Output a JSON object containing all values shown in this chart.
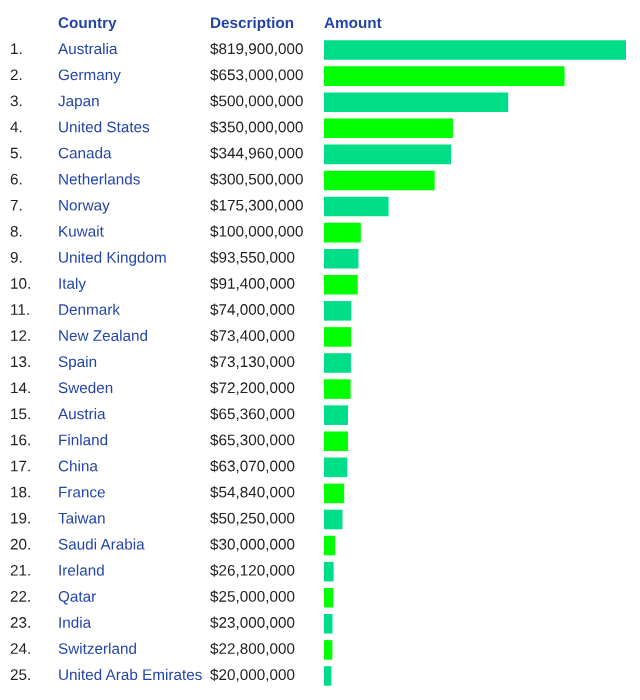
{
  "chart_data": {
    "type": "bar",
    "orientation": "horizontal",
    "categories": [
      "Australia",
      "Germany",
      "Japan",
      "United States",
      "Canada",
      "Netherlands",
      "Norway",
      "Kuwait",
      "United Kingdom",
      "Italy",
      "Denmark",
      "New Zealand",
      "Spain",
      "Sweden",
      "Austria",
      "Finland",
      "China",
      "France",
      "Taiwan",
      "Saudi Arabia",
      "Ireland",
      "Qatar",
      "India",
      "Switzerland",
      "United Arab Emirates"
    ],
    "values": [
      819900000,
      653000000,
      500000000,
      350000000,
      344960000,
      300500000,
      175300000,
      100000000,
      93550000,
      91400000,
      74000000,
      73400000,
      73130000,
      72200000,
      65360000,
      65300000,
      63070000,
      54840000,
      50250000,
      30000000,
      26120000,
      25000000,
      23000000,
      22800000,
      20000000
    ],
    "value_labels": [
      "$819,900,000",
      "$653,000,000",
      "$500,000,000",
      "$350,000,000",
      "$344,960,000",
      "$300,500,000",
      "$175,300,000",
      "$100,000,000",
      "$93,550,000",
      "$91,400,000",
      "$74,000,000",
      "$73,400,000",
      "$73,130,000",
      "$72,200,000",
      "$65,360,000",
      "$65,300,000",
      "$63,070,000",
      "$54,840,000",
      "$50,250,000",
      "$30,000,000",
      "$26,120,000",
      "$25,000,000",
      "$23,000,000",
      "$22,800,000",
      "$20,000,000"
    ],
    "colors": [
      "#00dd88",
      "#00ff00",
      "#00dd88",
      "#00ff00",
      "#00dd88",
      "#00ff00",
      "#00dd88",
      "#00ff00",
      "#00dd88",
      "#00ff00",
      "#00dd88",
      "#00ff00",
      "#00dd88",
      "#00ff00",
      "#00dd88",
      "#00ff00",
      "#00dd88",
      "#00ff00",
      "#00dd88",
      "#00ff00",
      "#00dd88",
      "#00ff00",
      "#00dd88",
      "#00ff00",
      "#00dd88"
    ],
    "xlim": [
      0,
      819900000
    ],
    "tick_labels": "y",
    "annotations": [
      "Country",
      "Description",
      "Amount",
      "1.",
      "2.",
      "3.",
      "4.",
      "5.",
      "6.",
      "7.",
      "8.",
      "9.",
      "10.",
      "11.",
      "12.",
      "13.",
      "14.",
      "15.",
      "16.",
      "17.",
      "18.",
      "19.",
      "20.",
      "21.",
      "22.",
      "23.",
      "24.",
      "25."
    ]
  }
}
